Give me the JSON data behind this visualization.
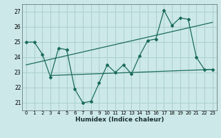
{
  "xlabel": "Humidex (Indice chaleur)",
  "background_color": "#cce8e8",
  "grid_color": "#aacfcf",
  "line_color": "#1a6b5a",
  "xlim": [
    -0.5,
    23.5
  ],
  "ylim": [
    20.5,
    27.5
  ],
  "xticks": [
    0,
    1,
    2,
    3,
    4,
    5,
    6,
    7,
    8,
    9,
    10,
    11,
    12,
    13,
    14,
    15,
    16,
    17,
    18,
    19,
    20,
    21,
    22,
    23
  ],
  "yticks": [
    21,
    22,
    23,
    24,
    25,
    26,
    27
  ],
  "series1_x": [
    0,
    1,
    2,
    3,
    4,
    5,
    6,
    7,
    8,
    9,
    10,
    11,
    12,
    13,
    14,
    15,
    16,
    17,
    18,
    19,
    20,
    21,
    22,
    23
  ],
  "series1_y": [
    25.0,
    25.0,
    24.2,
    22.7,
    24.6,
    24.5,
    21.9,
    21.0,
    21.1,
    22.3,
    23.5,
    23.0,
    23.5,
    22.9,
    24.1,
    25.1,
    25.2,
    27.1,
    26.1,
    26.6,
    26.5,
    24.0,
    23.2,
    23.2
  ],
  "series2_x": [
    0,
    23
  ],
  "series2_y": [
    23.5,
    26.3
  ],
  "series3_x": [
    3,
    23
  ],
  "series3_y": [
    22.8,
    23.2
  ]
}
